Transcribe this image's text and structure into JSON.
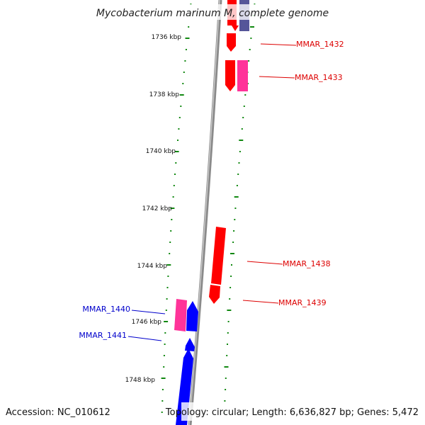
{
  "title": "Mycobacterium marinum M, complete genome",
  "footer": {
    "accession": "Accession: NC_010612",
    "info": "Topology: circular; Length: 6,636,827 bp; Genes: 5,472"
  },
  "kbp_labels": [
    "1736 kbp",
    "1738 kbp",
    "1740 kbp",
    "1742 kbp",
    "1744 kbp",
    "1746 kbp",
    "1748 kbp"
  ],
  "gene_labels": [
    {
      "text": "MMAR_1432",
      "color": "#dd0000"
    },
    {
      "text": "MMAR_1433",
      "color": "#dd0000"
    },
    {
      "text": "MMAR_1438",
      "color": "#dd0000"
    },
    {
      "text": "MMAR_1439",
      "color": "#dd0000"
    },
    {
      "text": "MMAR_1440",
      "color": "#0000cc"
    },
    {
      "text": "MMAR_1441",
      "color": "#0000cc"
    }
  ],
  "colors": {
    "forward_red": "#ff0000",
    "forward_pink": "#ff3399",
    "forward_purple": "#555599",
    "reverse_blue": "#0000ff",
    "reverse_pink": "#ff3399",
    "backbone": "#888888",
    "tick_green": "#118811"
  }
}
